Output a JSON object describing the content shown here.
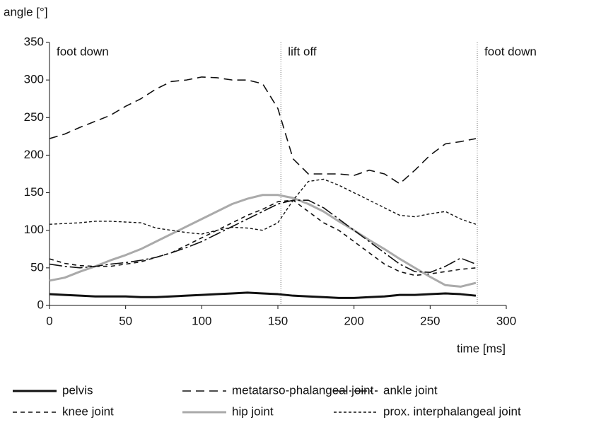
{
  "chart_data": {
    "type": "line",
    "y_label": "angle [°]",
    "x_label": "time [ms]",
    "x": [
      0,
      10,
      20,
      30,
      40,
      50,
      60,
      70,
      80,
      90,
      100,
      110,
      120,
      130,
      140,
      150,
      160,
      170,
      180,
      190,
      200,
      210,
      220,
      230,
      240,
      250,
      260,
      270,
      280
    ],
    "xlim": [
      0,
      300
    ],
    "xticks": [
      0,
      50,
      100,
      150,
      200,
      250,
      300
    ],
    "ylim": [
      0,
      350
    ],
    "yticks": [
      0,
      50,
      100,
      150,
      200,
      250,
      300,
      350
    ],
    "events": [
      {
        "x": 0,
        "label": "foot down"
      },
      {
        "x": 152,
        "label": "lift off"
      },
      {
        "x": 281,
        "label": "foot down"
      }
    ],
    "series": [
      {
        "name": "pelvis",
        "color": "#111111",
        "width": 3,
        "dash": "none",
        "values": [
          15,
          14,
          13,
          12,
          12,
          12,
          11,
          11,
          12,
          13,
          14,
          15,
          16,
          17,
          16,
          15,
          13,
          12,
          11,
          10,
          10,
          11,
          12,
          14,
          14,
          15,
          16,
          15,
          13
        ]
      },
      {
        "name": "knee joint",
        "color": "#111111",
        "width": 1.6,
        "dash": "6,5",
        "values": [
          62,
          56,
          53,
          52,
          52,
          55,
          58,
          64,
          70,
          80,
          90,
          100,
          110,
          120,
          128,
          138,
          140,
          125,
          110,
          100,
          85,
          70,
          55,
          45,
          40,
          42,
          45,
          48,
          50
        ]
      },
      {
        "name": "metatarso-phalangeal joint",
        "color": "#111111",
        "width": 1.6,
        "dash": "12,7",
        "values": [
          222,
          228,
          237,
          245,
          253,
          265,
          275,
          288,
          298,
          300,
          304,
          303,
          300,
          300,
          295,
          262,
          195,
          175,
          175,
          175,
          173,
          180,
          175,
          162,
          180,
          200,
          215,
          218,
          222
        ]
      },
      {
        "name": "hip joint",
        "color": "#aaaaaa",
        "width": 3,
        "dash": "none",
        "values": [
          33,
          37,
          45,
          52,
          60,
          67,
          75,
          85,
          95,
          105,
          115,
          125,
          135,
          142,
          147,
          147,
          143,
          135,
          125,
          112,
          100,
          87,
          75,
          62,
          50,
          38,
          27,
          25,
          30
        ]
      },
      {
        "name": "ankle joint",
        "color": "#111111",
        "width": 1.6,
        "dash": "18,4,3,4",
        "values": [
          55,
          52,
          50,
          52,
          55,
          57,
          60,
          64,
          70,
          77,
          85,
          95,
          105,
          115,
          125,
          135,
          140,
          140,
          130,
          115,
          100,
          85,
          70,
          55,
          45,
          44,
          52,
          63,
          55
        ]
      },
      {
        "name": "prox. interphalangeal joint",
        "color": "#111111",
        "width": 1.4,
        "dash": "4,3",
        "values": [
          108,
          109,
          110,
          112,
          112,
          111,
          110,
          103,
          100,
          97,
          95,
          100,
          104,
          103,
          100,
          110,
          140,
          165,
          168,
          160,
          150,
          140,
          130,
          120,
          118,
          122,
          125,
          115,
          108
        ]
      }
    ]
  }
}
